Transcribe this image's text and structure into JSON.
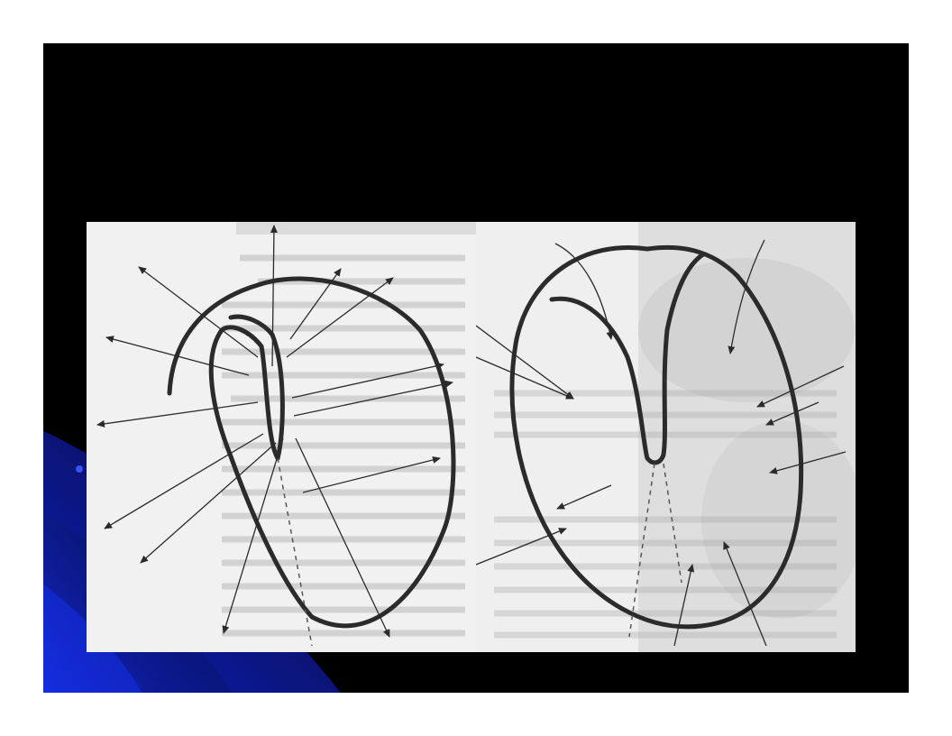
{
  "slide": {
    "background_color": "#000000",
    "accent_color": "#1a2fc8"
  },
  "figure": {
    "left_panel": {
      "kind": "scanned book page (mirrored) with diagram overlay",
      "ink_color": "#2b2b2b",
      "arrow_count": 13
    },
    "right_panel": {
      "kind": "scanned book page (mirrored) with diagram overlay",
      "ink_color": "#2b2b2b",
      "arrow_count": 11
    }
  }
}
